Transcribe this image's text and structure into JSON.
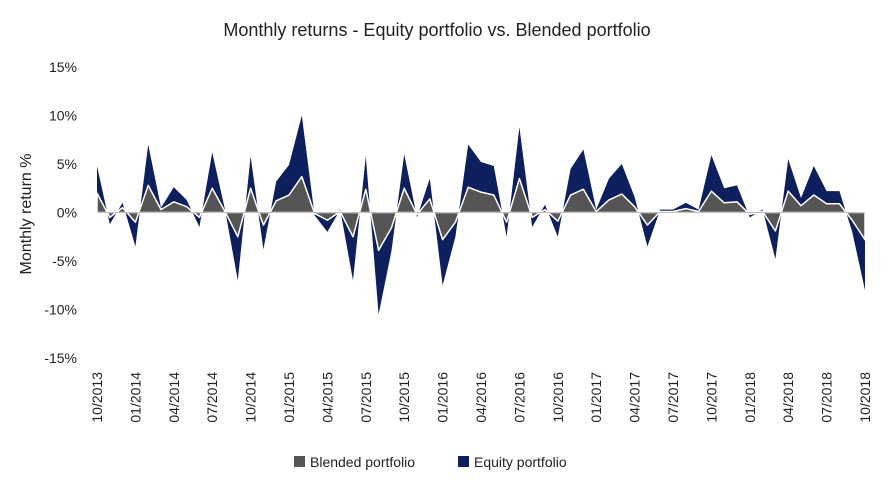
{
  "chart_data": {
    "type": "area",
    "title": "Monthly returns - Equity portfolio vs. Blended portfolio",
    "xlabel": "",
    "ylabel": "Monthly return %",
    "ylim": [
      -15,
      15
    ],
    "y_ticks": [
      15,
      10,
      5,
      0,
      -5,
      -10,
      -15
    ],
    "y_tick_labels": [
      "15%",
      "10%",
      "5%",
      "0%",
      "-5%",
      "-10%",
      "-15%"
    ],
    "x_tick_labels": [
      "10/2013",
      "01/2014",
      "04/2014",
      "07/2014",
      "10/2014",
      "01/2015",
      "04/2015",
      "07/2015",
      "10/2015",
      "01/2016",
      "04/2016",
      "07/2016",
      "10/2016",
      "01/2017",
      "04/2017",
      "07/2017",
      "10/2017",
      "01/2018",
      "04/2018",
      "07/2018",
      "10/2018"
    ],
    "grid": false,
    "legend_position": "bottom",
    "x": [
      "10/2013",
      "11/2013",
      "12/2013",
      "01/2014",
      "02/2014",
      "03/2014",
      "04/2014",
      "05/2014",
      "06/2014",
      "07/2014",
      "08/2014",
      "09/2014",
      "10/2014",
      "11/2014",
      "12/2014",
      "01/2015",
      "02/2015",
      "03/2015",
      "04/2015",
      "05/2015",
      "06/2015",
      "07/2015",
      "08/2015",
      "09/2015",
      "10/2015",
      "11/2015",
      "12/2015",
      "01/2016",
      "02/2016",
      "03/2016",
      "04/2016",
      "05/2016",
      "06/2016",
      "07/2016",
      "08/2016",
      "09/2016",
      "10/2016",
      "11/2016",
      "12/2016",
      "01/2017",
      "02/2017",
      "03/2017",
      "04/2017",
      "05/2017",
      "06/2017",
      "07/2017",
      "08/2017",
      "09/2017",
      "10/2017",
      "11/2017",
      "12/2017",
      "01/2018",
      "02/2018",
      "03/2018",
      "04/2018",
      "05/2018",
      "06/2018",
      "07/2018",
      "08/2018",
      "09/2018",
      "10/2018"
    ],
    "series": [
      {
        "name": "Equity portfolio",
        "color": "#0d1f5c",
        "values": [
          4.8,
          -1.2,
          1.0,
          -3.5,
          7.0,
          0.5,
          2.6,
          1.3,
          -1.5,
          6.2,
          0.3,
          -7.0,
          5.8,
          -3.8,
          3.2,
          4.9,
          10.0,
          -0.3,
          -2.0,
          0.3,
          -7.0,
          5.8,
          -10.5,
          -4.0,
          6.0,
          -0.5,
          3.5,
          -7.5,
          -2.5,
          7.0,
          5.2,
          4.8,
          -2.5,
          8.8,
          -1.5,
          0.8,
          -2.5,
          4.5,
          6.5,
          0.3,
          3.5,
          5.0,
          1.6,
          -3.5,
          0.3,
          0.3,
          1.0,
          0.3,
          5.9,
          2.5,
          2.8,
          -0.5,
          0.3,
          -4.8,
          5.5,
          1.5,
          4.8,
          2.2,
          2.2,
          -2.0,
          -8.0
        ]
      },
      {
        "name": "Blended portfolio",
        "color": "#555555",
        "values": [
          2.0,
          -0.5,
          0.5,
          -1.0,
          2.8,
          0.3,
          1.1,
          0.6,
          -0.5,
          2.5,
          0.1,
          -2.5,
          2.5,
          -1.3,
          1.2,
          1.8,
          3.7,
          -0.1,
          -0.8,
          0.1,
          -2.5,
          2.4,
          -3.9,
          -1.6,
          2.5,
          -0.2,
          1.4,
          -2.8,
          -1.0,
          2.6,
          2.1,
          1.8,
          -1.0,
          3.5,
          -0.5,
          0.3,
          -0.9,
          1.8,
          2.4,
          0.1,
          1.3,
          1.9,
          0.6,
          -1.3,
          0.1,
          0.1,
          0.4,
          0.1,
          2.2,
          1.0,
          1.1,
          -0.2,
          0.1,
          -1.9,
          2.2,
          0.7,
          1.8,
          0.9,
          0.9,
          -0.8,
          -2.8
        ]
      }
    ]
  }
}
